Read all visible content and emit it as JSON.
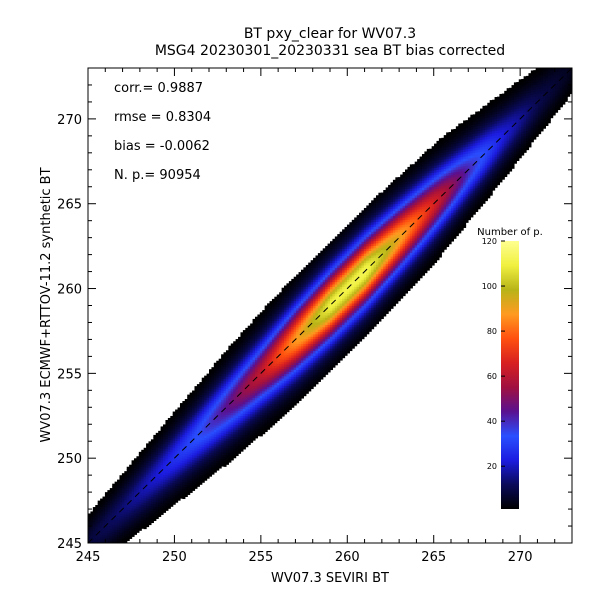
{
  "chart_data": {
    "type": "heatmap",
    "title": "BT pxy_clear for WV07.3",
    "subtitle": "MSG4 20230301_20230331 sea BT bias corrected",
    "xlabel": "WV07.3 SEVIRI BT",
    "ylabel": "WV07.3 ECMWF+RTTOV-11.2 synthetic BT",
    "xlim": [
      245,
      273
    ],
    "ylim": [
      245,
      273
    ],
    "x_ticks": [
      245,
      250,
      255,
      260,
      265,
      270
    ],
    "y_ticks": [
      245,
      250,
      255,
      260,
      265,
      270
    ],
    "x_tick_labels": [
      "245",
      "250",
      "255",
      "260",
      "265",
      "270"
    ],
    "y_tick_labels": [
      "245",
      "250",
      "255",
      "260",
      "265",
      "270"
    ],
    "grid": false,
    "reference_line": "dashed 1:1 diagonal",
    "stats": [
      {
        "label": "corr.=",
        "value": "0.9887"
      },
      {
        "label": "rmse =",
        "value": "0.8304"
      },
      {
        "label": "bias =",
        "value": "-0.0062"
      },
      {
        "label": "N. p.=",
        "value": "90954"
      }
    ],
    "colorbar": {
      "title": "Number of p.",
      "min": 1,
      "max": 120,
      "ticks": [
        20,
        40,
        60,
        80,
        100,
        120
      ],
      "tick_labels": [
        "20",
        "40",
        "60",
        "80",
        "100",
        "120"
      ],
      "colormap": [
        "#000000",
        "#0a0a5a",
        "#1c1ce0",
        "#2a50ff",
        "#5a1090",
        "#a01040",
        "#d82020",
        "#ff5010",
        "#ff9a20",
        "#b8b418",
        "#f0f040",
        "#ffff90"
      ]
    },
    "density_profile": {
      "x": [
        245,
        247,
        249,
        251,
        253,
        255,
        257,
        259,
        261,
        263,
        265,
        267,
        269,
        271,
        273
      ],
      "peak_counts": [
        8,
        14,
        22,
        32,
        45,
        62,
        88,
        110,
        112,
        90,
        65,
        40,
        22,
        10,
        4
      ],
      "spread": [
        0.8,
        0.9,
        1.0,
        1.1,
        1.2,
        1.25,
        1.3,
        1.3,
        1.3,
        1.25,
        1.2,
        1.1,
        1.0,
        0.9,
        0.8
      ]
    }
  }
}
